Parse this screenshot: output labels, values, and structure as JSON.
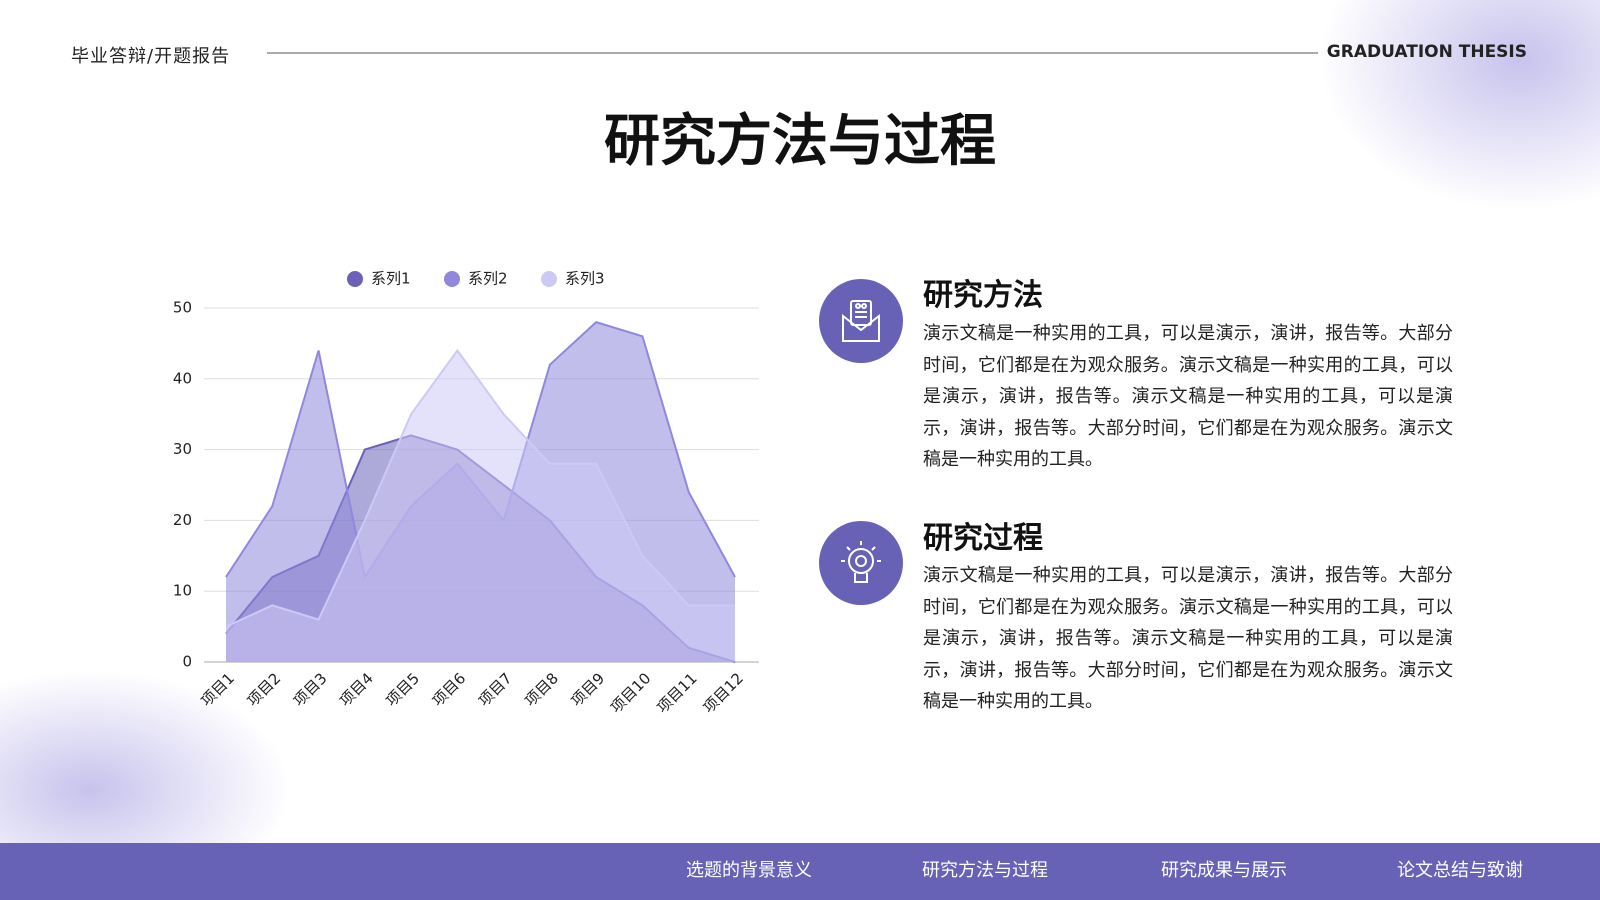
{
  "header": {
    "left": "毕业答辩/开题报告",
    "right": "GRADUATION THESIS"
  },
  "title": "研究方法与过程",
  "chart_data": {
    "type": "area",
    "categories": [
      "项目1",
      "项目2",
      "项目3",
      "项目4",
      "项目5",
      "项目6",
      "项目7",
      "项目8",
      "项目9",
      "项目10",
      "项目11",
      "项目12"
    ],
    "series": [
      {
        "name": "系列1",
        "color": "#6a62b8",
        "values": [
          4,
          12,
          15,
          30,
          32,
          30,
          25,
          20,
          12,
          8,
          2,
          0
        ]
      },
      {
        "name": "系列2",
        "color": "#8f88dc",
        "values": [
          12,
          22,
          44,
          12,
          22,
          28,
          20,
          42,
          48,
          46,
          24,
          12
        ]
      },
      {
        "name": "系列3",
        "color": "#cdc9f5",
        "values": [
          5,
          8,
          6,
          20,
          35,
          44,
          35,
          28,
          28,
          15,
          8,
          8
        ]
      }
    ],
    "ylim": [
      0,
      50
    ],
    "yticks": [
      0,
      10,
      20,
      30,
      40,
      50
    ],
    "grid": true,
    "legend": "top"
  },
  "sections": [
    {
      "heading": "研究方法",
      "text": "演示文稿是一种实用的工具，可以是演示，演讲，报告等。大部分时间，它们都是在为观众服务。演示文稿是一种实用的工具，可以是演示，演讲，报告等。演示文稿是一种实用的工具，可以是演示，演讲，报告等。大部分时间，它们都是在为观众服务。演示文稿是一种实用的工具。"
    },
    {
      "heading": "研究过程",
      "text": "演示文稿是一种实用的工具，可以是演示，演讲，报告等。大部分时间，它们都是在为观众服务。演示文稿是一种实用的工具，可以是演示，演讲，报告等。演示文稿是一种实用的工具，可以是演示，演讲，报告等。大部分时间，它们都是在为观众服务。演示文稿是一种实用的工具。"
    }
  ],
  "nav": [
    "选题的背景意义",
    "研究方法与过程",
    "研究成果与展示",
    "论文总结与致谢"
  ]
}
